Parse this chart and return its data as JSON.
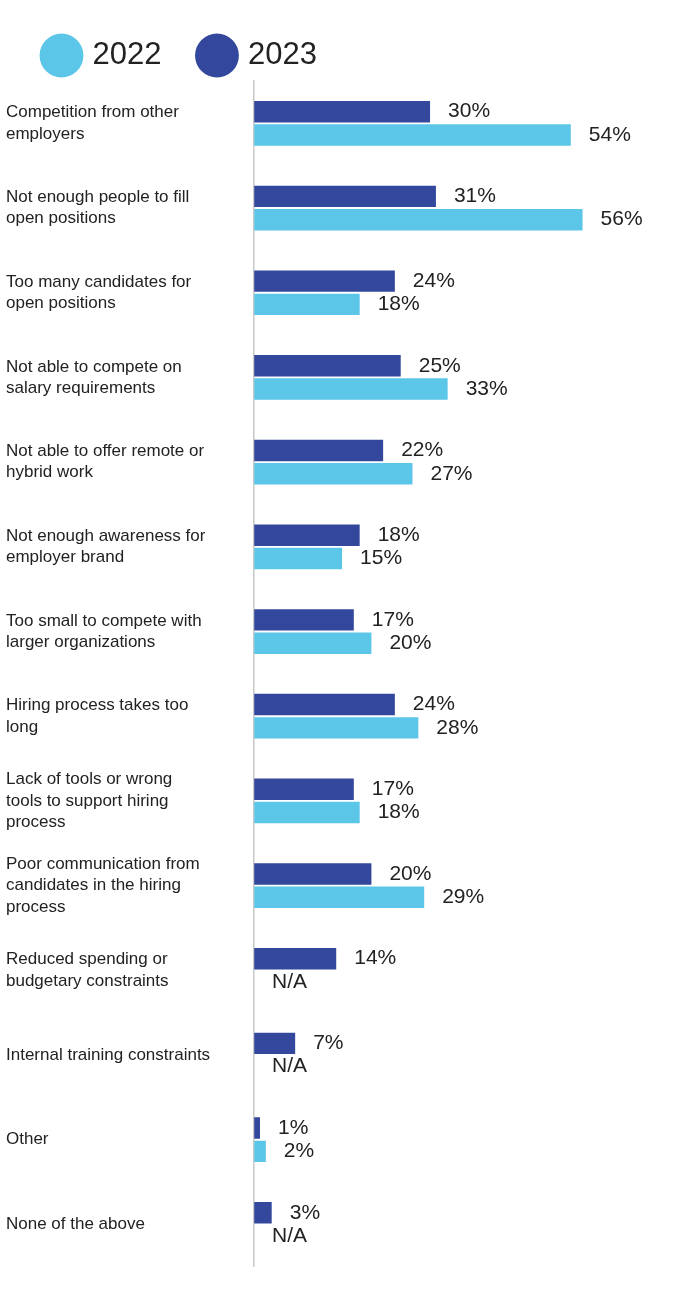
{
  "chart_data": {
    "type": "bar",
    "orientation": "horizontal",
    "categories": [
      "Competition from other employers",
      "Not enough people to fill open positions",
      "Too many candidates for open positions",
      "Not able to compete on salary requirements",
      "Not able to offer remote or hybrid work",
      "Not enough awareness for employer brand",
      "Too small to compete with larger organizations",
      "Hiring process takes too long",
      "Lack of tools or wrong tools to support hiring process",
      "Poor communication from candidates in the hiring process",
      "Reduced spending or budgetary constraints",
      "Internal training constraints",
      "Other",
      "None of the above"
    ],
    "series": [
      {
        "name": "2023",
        "color": "#33479c",
        "values": [
          30,
          31,
          24,
          25,
          22,
          18,
          17,
          24,
          17,
          20,
          14,
          7,
          1,
          3
        ],
        "value_labels": [
          "30%",
          "31%",
          "24%",
          "25%",
          "22%",
          "18%",
          "17%",
          "24%",
          "17%",
          "20%",
          "14%",
          "7%",
          "1%",
          "3%"
        ]
      },
      {
        "name": "2022",
        "color": "#5bc6e8",
        "values": [
          54,
          56,
          18,
          33,
          27,
          15,
          20,
          28,
          18,
          29,
          null,
          null,
          2,
          null
        ],
        "value_labels": [
          "54%",
          "56%",
          "18%",
          "33%",
          "27%",
          "15%",
          "20%",
          "28%",
          "18%",
          "29%",
          "N/A",
          "N/A",
          "2%",
          "N/A"
        ]
      }
    ],
    "tick_labels": "y",
    "grid": false,
    "legend": "top left"
  }
}
